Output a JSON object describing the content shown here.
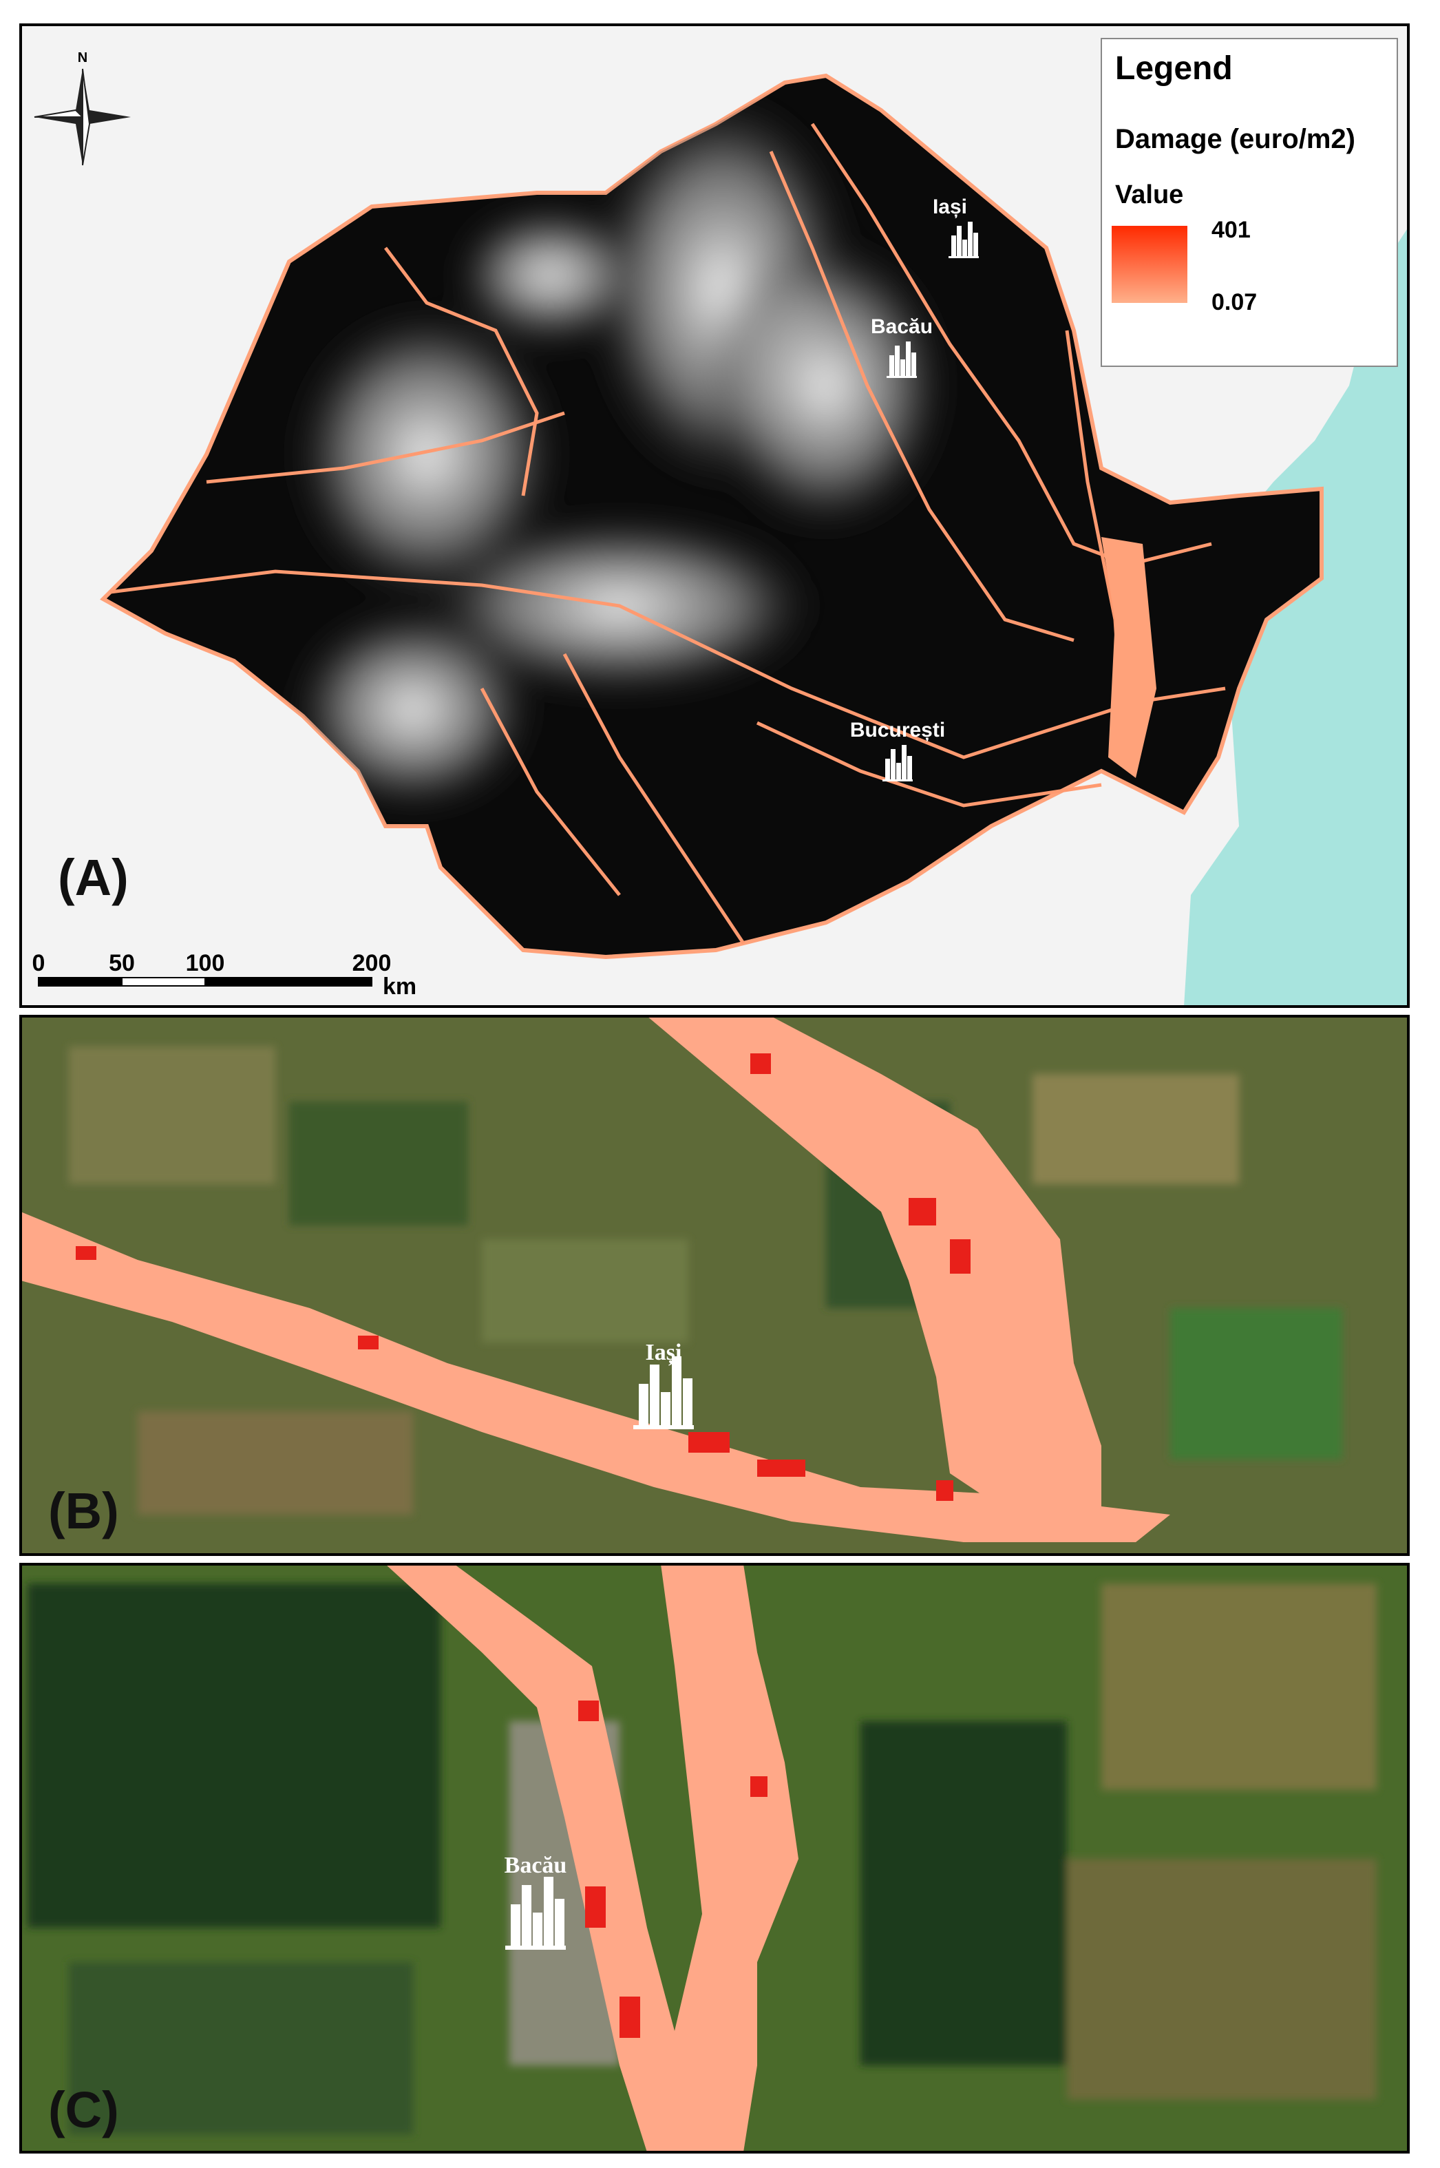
{
  "north": "N",
  "panels": [
    {
      "label": "(A)",
      "cities": [
        "Iași",
        "Bacău",
        "București"
      ]
    },
    {
      "label": "(B)",
      "city": "Iași"
    },
    {
      "label": "(C)",
      "city": "Bacău"
    }
  ],
  "legend": {
    "title": "Legend",
    "field": "Damage (euro/m2)",
    "subtitle": "Value",
    "max": 401,
    "min": 0.07
  },
  "scale_bar": {
    "ticks": [
      0,
      50,
      100,
      200
    ],
    "unit": "km"
  }
}
